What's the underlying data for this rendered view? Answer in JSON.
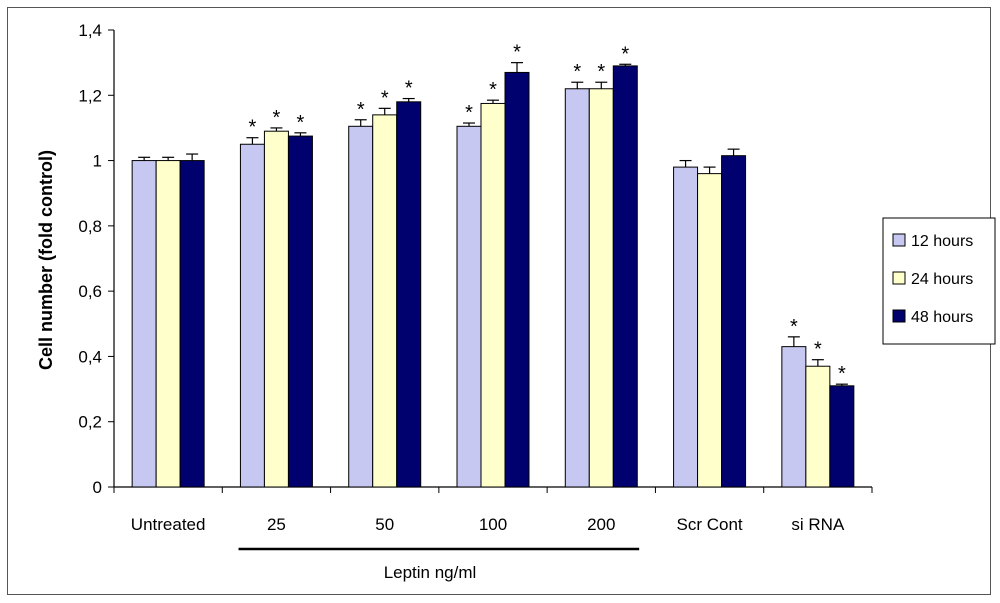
{
  "chart_data": {
    "type": "bar",
    "ylabel": "Cell number (fold control)",
    "group_axis_label": "Leptin ng/ml",
    "ylim": [
      0,
      1.4
    ],
    "yticks": [
      "0",
      "0,2",
      "0,4",
      "0,6",
      "0,8",
      "1",
      "1,2",
      "1,4"
    ],
    "categories": [
      "Untreated",
      "25",
      "50",
      "100",
      "200",
      "Scr Cont",
      "si RNA"
    ],
    "series": [
      {
        "name": "12 hours",
        "color": "#c6c8f2",
        "values": [
          1.0,
          1.05,
          1.105,
          1.105,
          1.22,
          0.98,
          0.43
        ],
        "errors": [
          0.01,
          0.02,
          0.02,
          0.01,
          0.02,
          0.02,
          0.03
        ],
        "significant": [
          false,
          true,
          true,
          true,
          true,
          false,
          true
        ]
      },
      {
        "name": "24 hours",
        "color": "#ffffcc",
        "values": [
          1.0,
          1.09,
          1.14,
          1.175,
          1.22,
          0.96,
          0.37
        ],
        "errors": [
          0.01,
          0.01,
          0.02,
          0.01,
          0.02,
          0.02,
          0.02
        ],
        "significant": [
          false,
          true,
          true,
          true,
          true,
          false,
          true
        ]
      },
      {
        "name": "48 hours",
        "color": "#00006e",
        "values": [
          1.0,
          1.075,
          1.18,
          1.27,
          1.29,
          1.015,
          0.31
        ],
        "errors": [
          0.02,
          0.01,
          0.01,
          0.03,
          0.005,
          0.02,
          0.005
        ],
        "significant": [
          false,
          true,
          true,
          true,
          true,
          false,
          true
        ]
      }
    ],
    "significance_marker": "*",
    "grid": false,
    "legend_position": "right"
  }
}
